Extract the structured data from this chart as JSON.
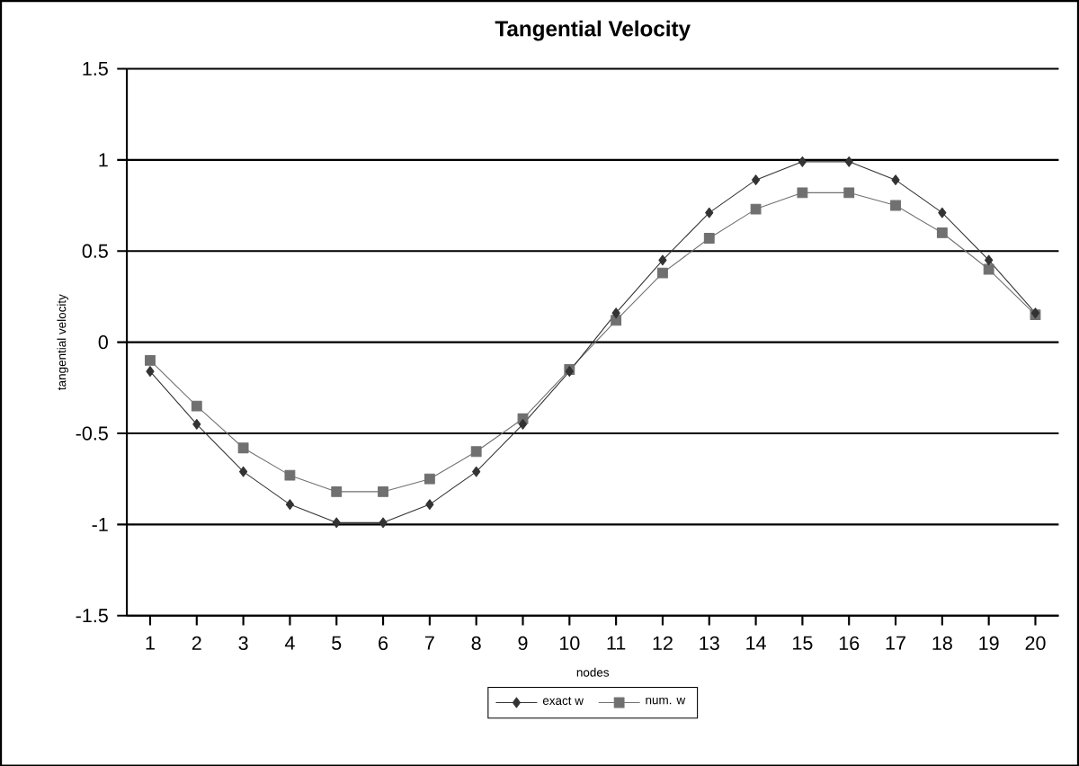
{
  "chart_data": {
    "type": "line",
    "title": "Tangential Velocity",
    "xlabel": "nodes",
    "ylabel": "tangential velocity",
    "categories": [
      "1",
      "2",
      "3",
      "4",
      "5",
      "6",
      "7",
      "8",
      "9",
      "10",
      "11",
      "12",
      "13",
      "14",
      "15",
      "16",
      "17",
      "18",
      "19",
      "20"
    ],
    "series": [
      {
        "name": "exact w",
        "color": "#333333",
        "marker": "diamond",
        "values": [
          -0.16,
          -0.45,
          -0.71,
          -0.89,
          -0.99,
          -0.99,
          -0.89,
          -0.71,
          -0.45,
          -0.16,
          0.16,
          0.45,
          0.71,
          0.89,
          0.99,
          0.99,
          0.89,
          0.71,
          0.45,
          0.16
        ]
      },
      {
        "name": "num. w",
        "color": "#707070",
        "marker": "square",
        "values": [
          -0.1,
          -0.35,
          -0.58,
          -0.73,
          -0.82,
          -0.82,
          -0.75,
          -0.6,
          -0.42,
          -0.15,
          0.12,
          0.38,
          0.57,
          0.73,
          0.82,
          0.82,
          0.75,
          0.6,
          0.4,
          0.15
        ]
      }
    ],
    "ylim": [
      -1.5,
      1.5
    ],
    "yticks": [
      -1.5,
      -1,
      -0.5,
      0,
      0.5,
      1,
      1.5
    ],
    "grid": "y",
    "legend": "bottom",
    "line_style": "solid"
  }
}
